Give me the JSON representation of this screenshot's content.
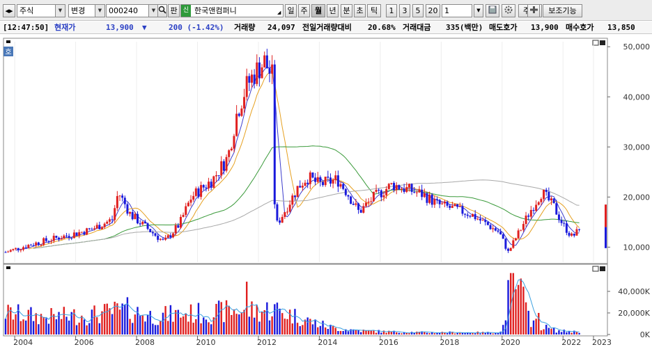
{
  "toolbar": {
    "market_select": "주식",
    "mode_select": "변경",
    "code_input": "000240",
    "pan_button": "판",
    "sin_badge": "신",
    "company_name": "한국앤컴퍼니",
    "periods": [
      "일",
      "주",
      "월",
      "년",
      "분",
      "초",
      "틱"
    ],
    "active_period": "월",
    "intervals": [
      "1",
      "3",
      "5",
      "20"
    ],
    "interval_value": "1",
    "order_button": "주문",
    "aux_button": "보조기능"
  },
  "quote": {
    "time": "[12:47:50]",
    "current_label": "현재가",
    "price": "13,900",
    "arrow": "▼",
    "change": "200 (-1.42%)",
    "volume_label": "거래량",
    "volume": "24,097",
    "prev_ratio_label": "전일거래량대비",
    "prev_ratio": "20.68%",
    "amount_label": "거래대금",
    "amount": "335(백만)",
    "ask_label": "매도호가",
    "ask": "13,900",
    "bid_label": "매수호가",
    "bid": "13,850"
  },
  "chart_panel": {
    "corner_badge": "호"
  },
  "chart_data": {
    "type": "candlestick",
    "frequency": "monthly",
    "x_ticks": [
      "2004",
      "2006",
      "2008",
      "2010",
      "2012",
      "2014",
      "2016",
      "2018",
      "2020",
      "2022",
      "2023"
    ],
    "price_ticks": [
      "50,000",
      "40,000",
      "30,000",
      "20,000",
      "10,000"
    ],
    "price_tick_values": [
      50000,
      40000,
      30000,
      20000,
      10000
    ],
    "price_range": [
      7000,
      51000
    ],
    "volume_ticks": [
      "40,000K",
      "20,000K",
      "0K"
    ],
    "volume_tick_values": [
      40000,
      20000,
      0
    ],
    "volume_range": [
      0,
      60000
    ],
    "start_year": 2003.7,
    "end_year": 2022.6,
    "price_anchors": [
      [
        2003.7,
        9000
      ],
      [
        2004.5,
        10500
      ],
      [
        2005.5,
        12000
      ],
      [
        2006.5,
        13500
      ],
      [
        2007.2,
        15500
      ],
      [
        2007.4,
        21000
      ],
      [
        2007.8,
        16500
      ],
      [
        2008.3,
        14000
      ],
      [
        2008.9,
        11000
      ],
      [
        2009.4,
        14500
      ],
      [
        2009.8,
        20000
      ],
      [
        2010.5,
        23500
      ],
      [
        2011.0,
        28000
      ],
      [
        2011.3,
        37000
      ],
      [
        2011.6,
        42000
      ],
      [
        2011.9,
        45000
      ],
      [
        2012.2,
        47000
      ],
      [
        2012.45,
        44000
      ],
      [
        2012.55,
        14000
      ],
      [
        2012.8,
        16500
      ],
      [
        2013.3,
        22000
      ],
      [
        2013.6,
        24000
      ],
      [
        2014.0,
        22500
      ],
      [
        2014.6,
        23500
      ],
      [
        2014.9,
        21000
      ],
      [
        2015.3,
        17000
      ],
      [
        2015.8,
        20000
      ],
      [
        2016.4,
        22500
      ],
      [
        2016.9,
        21500
      ],
      [
        2017.4,
        20500
      ],
      [
        2017.9,
        18500
      ],
      [
        2018.5,
        17500
      ],
      [
        2019.0,
        16500
      ],
      [
        2019.5,
        14500
      ],
      [
        2019.9,
        13000
      ],
      [
        2020.2,
        9000
      ],
      [
        2020.6,
        13500
      ],
      [
        2020.9,
        17000
      ],
      [
        2021.3,
        21000
      ],
      [
        2021.7,
        18000
      ],
      [
        2022.0,
        14500
      ],
      [
        2022.3,
        12000
      ],
      [
        2022.6,
        13900
      ]
    ],
    "volume_anchors": [
      [
        2003.7,
        21000
      ],
      [
        2005.0,
        17000
      ],
      [
        2006.5,
        19000
      ],
      [
        2007.7,
        24000
      ],
      [
        2008.5,
        18000
      ],
      [
        2009.5,
        20000
      ],
      [
        2010.5,
        21000
      ],
      [
        2011.3,
        24000
      ],
      [
        2012.0,
        23000
      ],
      [
        2012.5,
        25000
      ],
      [
        2013.0,
        20000
      ],
      [
        2013.8,
        12000
      ],
      [
        2014.5,
        6000
      ],
      [
        2015.5,
        3500
      ],
      [
        2016.5,
        2500
      ],
      [
        2017.5,
        2000
      ],
      [
        2018.5,
        2000
      ],
      [
        2019.5,
        1800
      ],
      [
        2020.0,
        2500
      ],
      [
        2020.2,
        38000
      ],
      [
        2020.5,
        50000
      ],
      [
        2020.9,
        14000
      ],
      [
        2021.3,
        8000
      ],
      [
        2021.8,
        3500
      ],
      [
        2022.6,
        2500
      ]
    ],
    "volume_spikes": [
      [
        2011.6,
        49000
      ],
      [
        2020.3,
        57000
      ],
      [
        2020.4,
        57000
      ],
      [
        2020.55,
        46000
      ],
      [
        2020.85,
        22000
      ],
      [
        2021.2,
        20000
      ]
    ],
    "moving_averages": [
      {
        "period": 5,
        "color": "#3d3dcc"
      },
      {
        "period": 10,
        "color": "#e6a020"
      },
      {
        "period": 40,
        "color": "#3a9a3a"
      },
      {
        "period": 120,
        "color": "#a8a8a8"
      }
    ],
    "volume_ma_color": "#3aa0e0",
    "up_color": "#e02020",
    "down_color": "#1a1adc"
  }
}
